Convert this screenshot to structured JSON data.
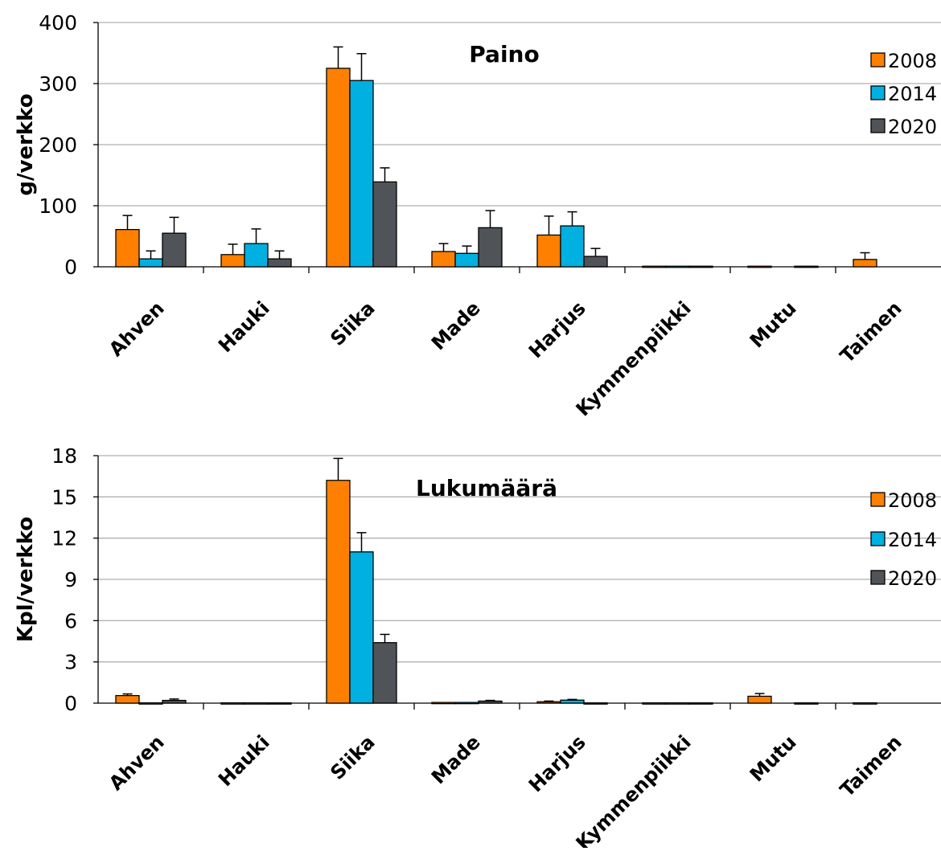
{
  "colors": {
    "2008": "#ff8000",
    "2014": "#00b0e0",
    "2020": "#505458"
  },
  "chart_data": [
    {
      "type": "bar",
      "title": "Paino",
      "ylabel": "g/verkko",
      "ylim": [
        0,
        400
      ],
      "yticks": [
        0,
        100,
        200,
        300,
        400
      ],
      "grid": true,
      "legend": "top-right",
      "categories": [
        "Ahven",
        "Hauki",
        "Siika",
        "Made",
        "Harjus",
        "Kymmenpiikki",
        "Mutu",
        "Taimen"
      ],
      "series": [
        {
          "name": "2008",
          "values": [
            61,
            20,
            325,
            25,
            52,
            1,
            1,
            12
          ],
          "errors": [
            23,
            17,
            35,
            13,
            31,
            0,
            0,
            11
          ]
        },
        {
          "name": "2014",
          "values": [
            13,
            38,
            305,
            22,
            67,
            1,
            0,
            0
          ],
          "errors": [
            13,
            24,
            44,
            12,
            23,
            0,
            0,
            0
          ]
        },
        {
          "name": "2020",
          "values": [
            55,
            13,
            139,
            64,
            17,
            1,
            1,
            0
          ],
          "errors": [
            26,
            13,
            23,
            28,
            13,
            0,
            0,
            0
          ]
        }
      ]
    },
    {
      "type": "bar",
      "title": "Lukumäärä",
      "ylabel": "Kpl/verkko",
      "ylim": [
        0,
        18
      ],
      "yticks": [
        0,
        3,
        6,
        9,
        12,
        15,
        18
      ],
      "grid": true,
      "legend": "top-right",
      "categories": [
        "Ahven",
        "Hauki",
        "Siika",
        "Made",
        "Harjus",
        "Kymmenpiikki",
        "Mutu",
        "Taimen"
      ],
      "series": [
        {
          "name": "2008",
          "values": [
            0.55,
            0.02,
            16.2,
            0.05,
            0.1,
            0.02,
            0.5,
            0.02
          ],
          "errors": [
            0.12,
            0,
            1.6,
            0,
            0.05,
            0,
            0.2,
            0
          ]
        },
        {
          "name": "2014",
          "values": [
            0.02,
            0.02,
            11.0,
            0.05,
            0.22,
            0.02,
            0,
            0
          ],
          "errors": [
            0,
            0,
            1.4,
            0,
            0.05,
            0,
            0,
            0
          ]
        },
        {
          "name": "2020",
          "values": [
            0.2,
            0.02,
            4.4,
            0.15,
            0.02,
            0.02,
            0.02,
            0
          ],
          "errors": [
            0.1,
            0,
            0.6,
            0.05,
            0,
            0,
            0,
            0
          ]
        }
      ]
    }
  ]
}
